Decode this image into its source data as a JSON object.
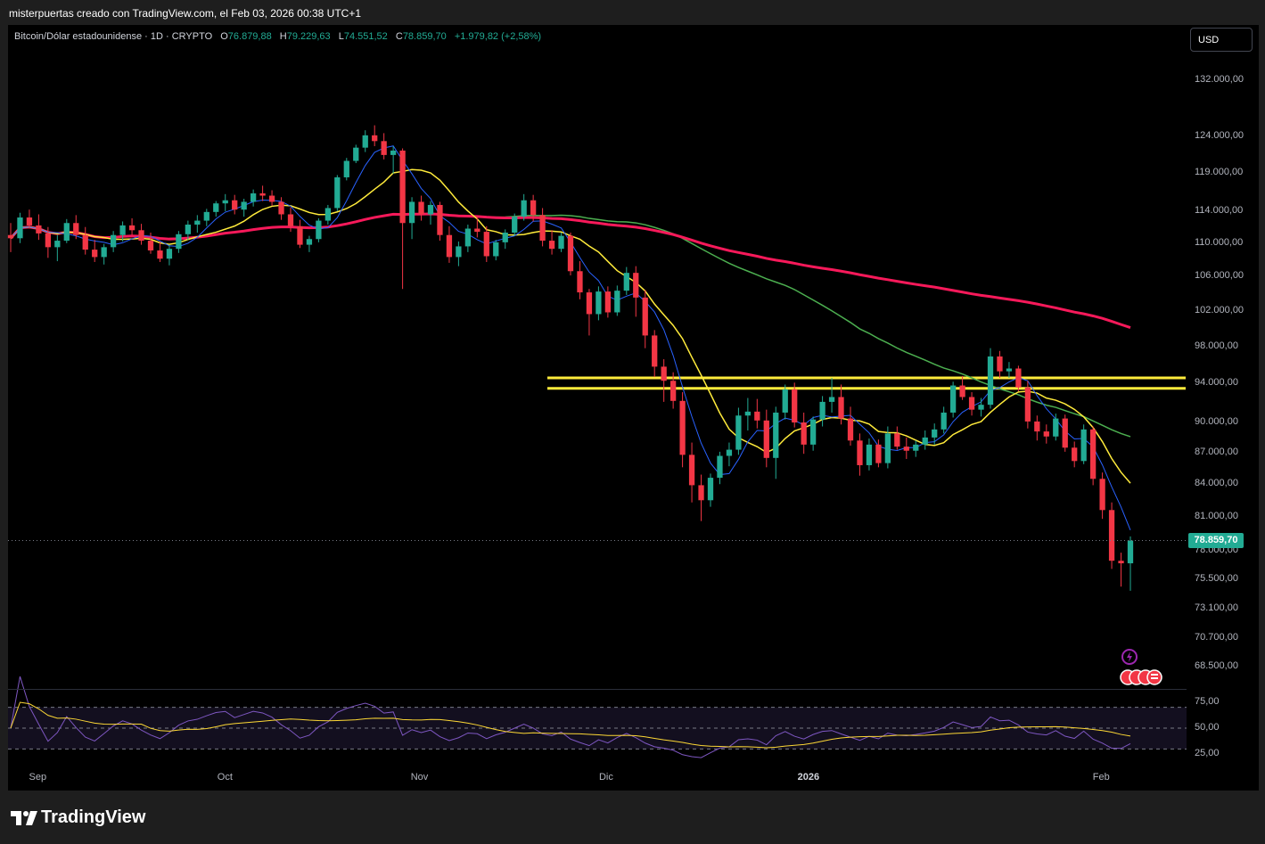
{
  "header": {
    "text": "misterpuertas creado con TradingView.com, el Feb 03, 2026 00:38 UTC+1"
  },
  "legend": {
    "symbol": "Bitcoin/Dólar estadounidense · 1D · CRYPTO",
    "open_label": "O",
    "open": "76.879,88",
    "high_label": "H",
    "high": "79.229,63",
    "low_label": "L",
    "low": "74.551,52",
    "close_label": "C",
    "close": "78.859,70",
    "change": "+1.979,82 (+2,58%)"
  },
  "currency_button": "USD",
  "last_price": "78.859,70",
  "price_axis": [
    "132.000,00",
    "124.000,00",
    "119.000,00",
    "114.000,00",
    "110.000,00",
    "106.000,00",
    "102.000,00",
    "98.000,00",
    "94.000,00",
    "90.000,00",
    "87.000,00",
    "84.000,00",
    "81.000,00",
    "78.000,00",
    "75.500,00",
    "73.100,00",
    "70.700,00",
    "68.500,00"
  ],
  "rsi_axis": [
    "75,00",
    "50,00",
    "25,00"
  ],
  "time_axis": [
    "Sep",
    "Oct",
    "Nov",
    "Dic",
    "2026",
    "Feb"
  ],
  "brand": "TradingView",
  "colors": {
    "up": "#22ab94",
    "down": "#f23645",
    "ma_fast": "#2962ff",
    "ma_mid": "#ffeb3b",
    "ma_slow": "#4caf50",
    "ma_long": "#f7195a",
    "rsi": "#7e57c2",
    "rsi_ma": "#fdd835",
    "support": "#ffeb3b"
  },
  "chart_data": {
    "type": "candlestick",
    "title": "",
    "x_start": "Sep",
    "x_end": "Feb",
    "xlabel": "",
    "ylabel": "",
    "ylim": [
      67000,
      136000
    ],
    "log_scale": true,
    "grid": false,
    "support_zone": [
      93500,
      94600
    ],
    "ohlc": [
      [
        111000,
        112500,
        108900,
        110600
      ],
      [
        110600,
        113800,
        110000,
        113200
      ],
      [
        113200,
        114200,
        111800,
        112200
      ],
      [
        112200,
        113600,
        110400,
        111200
      ],
      [
        111200,
        112000,
        108200,
        109500
      ],
      [
        109500,
        111000,
        107800,
        110300
      ],
      [
        110300,
        113000,
        110000,
        112500
      ],
      [
        112500,
        113500,
        110500,
        111000
      ],
      [
        111000,
        112000,
        108600,
        109200
      ],
      [
        109200,
        110400,
        107700,
        108300
      ],
      [
        108300,
        109900,
        107400,
        109500
      ],
      [
        109500,
        111500,
        108900,
        111000
      ],
      [
        111000,
        112700,
        110200,
        112200
      ],
      [
        112200,
        113100,
        111000,
        111600
      ],
      [
        111600,
        112400,
        109800,
        110300
      ],
      [
        110300,
        111300,
        108700,
        109100
      ],
      [
        109100,
        110200,
        107700,
        108100
      ],
      [
        108100,
        109800,
        107300,
        109300
      ],
      [
        109300,
        111500,
        108800,
        111100
      ],
      [
        111100,
        112800,
        110400,
        112300
      ],
      [
        112300,
        113500,
        111300,
        112800
      ],
      [
        112800,
        114300,
        112100,
        113900
      ],
      [
        113900,
        115300,
        113300,
        115000
      ],
      [
        115000,
        116200,
        114000,
        115400
      ],
      [
        115400,
        116100,
        113600,
        114200
      ],
      [
        114200,
        115600,
        113300,
        115200
      ],
      [
        115200,
        116800,
        114600,
        116300
      ],
      [
        116300,
        117300,
        115300,
        116000
      ],
      [
        116000,
        116700,
        114700,
        115200
      ],
      [
        115200,
        115800,
        112900,
        113600
      ],
      [
        113600,
        114500,
        111400,
        112100
      ],
      [
        112100,
        112900,
        109400,
        109800
      ],
      [
        109800,
        110900,
        108900,
        110500
      ],
      [
        110500,
        113100,
        110100,
        112800
      ],
      [
        112800,
        114800,
        112300,
        114400
      ],
      [
        114400,
        118700,
        114000,
        118400
      ],
      [
        118400,
        121000,
        118000,
        120600
      ],
      [
        120600,
        122800,
        120300,
        122400
      ],
      [
        122400,
        124800,
        121800,
        124100
      ],
      [
        124100,
        125500,
        122600,
        123300
      ],
      [
        123300,
        124400,
        120800,
        121400
      ],
      [
        121400,
        122600,
        118900,
        122000
      ],
      [
        122000,
        122300,
        104500,
        112500
      ],
      [
        112500,
        115800,
        110500,
        115200
      ],
      [
        115200,
        116000,
        112800,
        113600
      ],
      [
        113600,
        115300,
        112300,
        114800
      ],
      [
        114800,
        115200,
        110300,
        111000
      ],
      [
        111000,
        112100,
        107600,
        108300
      ],
      [
        108300,
        110200,
        107200,
        109600
      ],
      [
        109600,
        112300,
        108900,
        111800
      ],
      [
        111800,
        113300,
        110700,
        111400
      ],
      [
        111400,
        112100,
        107700,
        108400
      ],
      [
        108400,
        110400,
        107900,
        110100
      ],
      [
        110100,
        111700,
        109300,
        111300
      ],
      [
        111300,
        113700,
        110900,
        113300
      ],
      [
        113300,
        116200,
        112800,
        115400
      ],
      [
        115400,
        116100,
        112700,
        113500
      ],
      [
        113500,
        114400,
        109600,
        110300
      ],
      [
        110300,
        111600,
        108600,
        109300
      ],
      [
        109300,
        111300,
        108900,
        110900
      ],
      [
        110900,
        111300,
        106100,
        106600
      ],
      [
        106600,
        107800,
        103300,
        104100
      ],
      [
        104100,
        104500,
        99200,
        101600
      ],
      [
        101600,
        104800,
        100900,
        104200
      ],
      [
        104200,
        104800,
        101200,
        101800
      ],
      [
        101800,
        104900,
        101400,
        104300
      ],
      [
        104300,
        107100,
        103800,
        106400
      ],
      [
        106400,
        107200,
        101300,
        103500
      ],
      [
        103500,
        104400,
        97800,
        99200
      ],
      [
        99200,
        99800,
        94700,
        95800
      ],
      [
        95800,
        96600,
        92100,
        94300
      ],
      [
        94300,
        95200,
        91400,
        92200
      ],
      [
        92200,
        93100,
        85600,
        86800
      ],
      [
        86800,
        88000,
        82300,
        83900
      ],
      [
        83900,
        84900,
        80600,
        82500
      ],
      [
        82500,
        85000,
        81900,
        84600
      ],
      [
        84600,
        87100,
        84000,
        86700
      ],
      [
        86700,
        88000,
        85700,
        87300
      ],
      [
        87300,
        91500,
        86800,
        90700
      ],
      [
        90700,
        92500,
        89200,
        91100
      ],
      [
        91100,
        92400,
        89400,
        90200
      ],
      [
        90200,
        91300,
        85600,
        86500
      ],
      [
        86500,
        91600,
        84500,
        91000
      ],
      [
        91000,
        93900,
        90300,
        93400
      ],
      [
        93400,
        94100,
        89500,
        90000
      ],
      [
        90000,
        91000,
        86900,
        87800
      ],
      [
        87800,
        90600,
        87200,
        90300
      ],
      [
        90300,
        92700,
        89600,
        92100
      ],
      [
        92100,
        94600,
        91000,
        92600
      ],
      [
        92600,
        93900,
        89800,
        90400
      ],
      [
        90400,
        91600,
        87700,
        88200
      ],
      [
        88200,
        88900,
        84800,
        85800
      ],
      [
        85800,
        88400,
        85300,
        87800
      ],
      [
        87800,
        88300,
        85600,
        86000
      ],
      [
        86000,
        89600,
        85500,
        88900
      ],
      [
        88900,
        89600,
        87300,
        87600
      ],
      [
        87600,
        88500,
        86400,
        87200
      ],
      [
        87200,
        88200,
        86600,
        87800
      ],
      [
        87800,
        89200,
        87300,
        88500
      ],
      [
        88500,
        89900,
        87800,
        89300
      ],
      [
        89300,
        91600,
        88900,
        91000
      ],
      [
        91000,
        94200,
        90500,
        93800
      ],
      [
        93800,
        94800,
        92300,
        92600
      ],
      [
        92600,
        93100,
        90700,
        91300
      ],
      [
        91300,
        92500,
        90600,
        91800
      ],
      [
        91800,
        97800,
        91400,
        96900
      ],
      [
        96900,
        97500,
        94600,
        95300
      ],
      [
        95300,
        96300,
        94600,
        95600
      ],
      [
        95600,
        95900,
        93200,
        93600
      ],
      [
        93600,
        94300,
        89400,
        90100
      ],
      [
        90100,
        90700,
        88200,
        89100
      ],
      [
        89100,
        89800,
        87900,
        88600
      ],
      [
        88600,
        90900,
        88200,
        90400
      ],
      [
        90400,
        90800,
        87100,
        87500
      ],
      [
        87500,
        88100,
        85600,
        86200
      ],
      [
        86200,
        89800,
        85900,
        89300
      ],
      [
        89300,
        89600,
        83900,
        84500
      ],
      [
        84500,
        85100,
        80800,
        81600
      ],
      [
        81600,
        82300,
        76400,
        77100
      ],
      [
        77100,
        77800,
        74900,
        76880
      ],
      [
        76880,
        79230,
        74550,
        78860
      ]
    ]
  }
}
